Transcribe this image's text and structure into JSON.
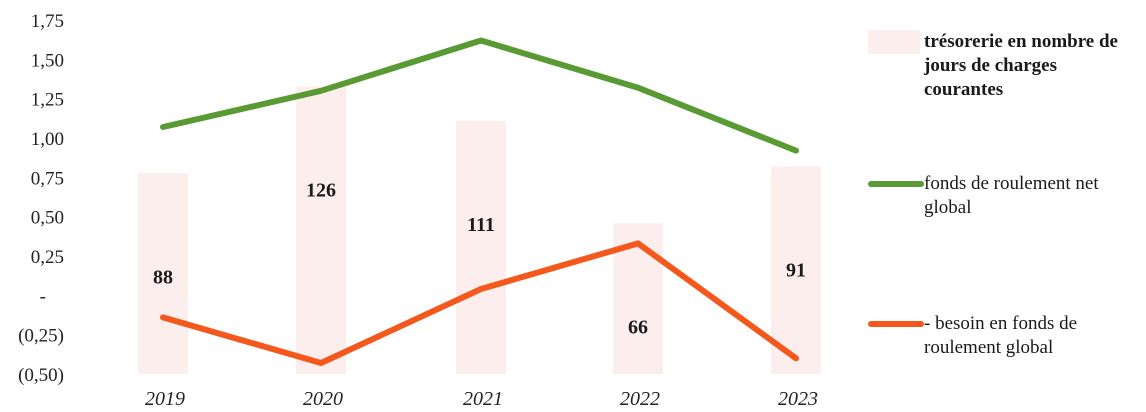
{
  "chart_data": {
    "type": "bar+line",
    "categories": [
      "2019",
      "2020",
      "2021",
      "2022",
      "2023"
    ],
    "bars": {
      "name": "trésorerie en nombre de jours de charges courantes",
      "values": [
        88,
        126,
        111,
        66,
        91
      ],
      "color": "#fdeeee"
    },
    "series": [
      {
        "name": "fonds de roulement net global",
        "values": [
          1.07,
          1.3,
          1.62,
          1.32,
          0.92
        ],
        "color": "#5a9a34"
      },
      {
        "name": "- besoin en fonds de roulement global",
        "values": [
          -0.14,
          -0.43,
          0.04,
          0.33,
          -0.4
        ],
        "color": "#f4581c"
      }
    ],
    "y_ticks": [
      "1,75",
      "1,50",
      "1,25",
      "1,00",
      "0,75",
      "0,50",
      "0,25",
      "-",
      "(0,25)",
      "(0,50)"
    ],
    "ylim": [
      -0.5,
      1.75
    ],
    "legend_position": "right",
    "grid": false
  }
}
